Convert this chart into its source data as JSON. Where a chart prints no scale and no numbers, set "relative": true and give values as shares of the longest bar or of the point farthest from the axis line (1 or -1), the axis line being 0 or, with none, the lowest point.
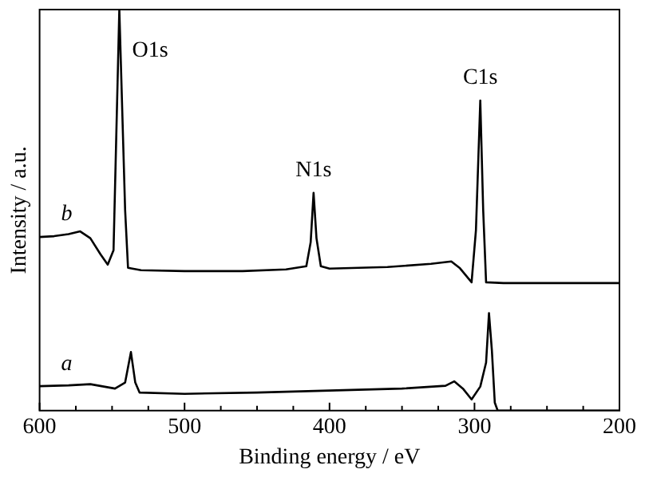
{
  "chart_data": {
    "type": "line",
    "xlabel": "Binding energy / eV",
    "ylabel": "Intensity / a.u.",
    "relative": true,
    "xlim": [
      600,
      200
    ],
    "xticks": [
      600,
      {
        "value": 575,
        "label": null
      },
      {
        "value": 550,
        "label": null
      },
      {
        "value": 525,
        "label": null
      },
      500,
      {
        "value": 475,
        "label": null
      },
      {
        "value": 450,
        "label": null
      },
      {
        "value": 425,
        "label": null
      },
      400,
      {
        "value": 375,
        "label": null
      },
      {
        "value": 350,
        "label": null
      },
      {
        "value": 325,
        "label": null
      },
      300,
      {
        "value": 275,
        "label": null
      },
      {
        "value": 250,
        "label": null
      },
      {
        "value": 225,
        "label": null
      },
      200
    ],
    "grid": false,
    "legend": false,
    "marker": "none",
    "line_style": "solid",
    "annotations": [
      {
        "text": "O1s",
        "x": 545,
        "y": 1.0
      },
      {
        "text": "N1s",
        "x": 411,
        "y": 0.543
      },
      {
        "text": "C1s",
        "x": 296,
        "y": 0.773
      }
    ],
    "series": [
      {
        "name": "b",
        "color": "#000000",
        "x": [
          600,
          590,
          580,
          572,
          565,
          558,
          553,
          549,
          545,
          541,
          539,
          530,
          500,
          460,
          430,
          416,
          413,
          411,
          409,
          406,
          400,
          360,
          330,
          316,
          310,
          302,
          299,
          296,
          294,
          292,
          280,
          240,
          200
        ],
        "values": [
          0.433,
          0.435,
          0.44,
          0.447,
          0.43,
          0.39,
          0.364,
          0.4,
          1.0,
          0.5,
          0.356,
          0.35,
          0.348,
          0.348,
          0.352,
          0.36,
          0.42,
          0.543,
          0.43,
          0.36,
          0.354,
          0.358,
          0.366,
          0.372,
          0.355,
          0.32,
          0.45,
          0.773,
          0.5,
          0.32,
          0.318,
          0.318,
          0.318
        ]
      },
      {
        "name": "a",
        "color": "#000000",
        "x": [
          600,
          580,
          565,
          548,
          541,
          537,
          534,
          531,
          500,
          450,
          400,
          350,
          320,
          314,
          308,
          302,
          296,
          292,
          290,
          288,
          286,
          284,
          200
        ],
        "values": [
          0.061,
          0.063,
          0.066,
          0.055,
          0.07,
          0.146,
          0.07,
          0.045,
          0.042,
          0.045,
          0.05,
          0.055,
          0.062,
          0.073,
          0.055,
          0.028,
          0.06,
          0.12,
          0.243,
          0.15,
          0.02,
          0,
          0
        ]
      }
    ]
  }
}
